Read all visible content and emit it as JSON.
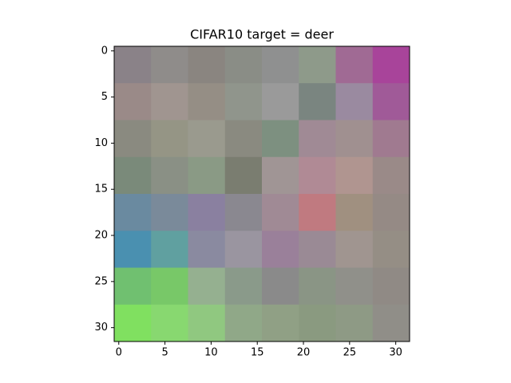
{
  "chart_data": {
    "type": "image",
    "title": "CIFAR10 target = deer",
    "xlim": [
      -0.5,
      31.5
    ],
    "ylim": [
      31.5,
      -0.5
    ],
    "xticks": [
      0,
      5,
      10,
      15,
      20,
      25,
      30
    ],
    "yticks": [
      0,
      5,
      10,
      15,
      20,
      25,
      30
    ],
    "pixels": [
      [
        "#8a8288",
        "#8f8c8a",
        "#8a8580",
        "#8a8d86",
        "#8f9090",
        "#8e9a8a",
        "#a06a94",
        "#a8449a"
      ],
      [
        "#9a8a88",
        "#a09590",
        "#958e85",
        "#90958c",
        "#9a9a9a",
        "#7a8580",
        "#9a8aa0",
        "#a05a98"
      ],
      [
        "#8a8a80",
        "#959585",
        "#9a9a8e",
        "#8a8a80",
        "#7d9080",
        "#a08a95",
        "#a09090",
        "#a07a90"
      ],
      [
        "#7a8a7a",
        "#8a9085",
        "#8a9a85",
        "#7a7d70",
        "#a09595",
        "#b08a95",
        "#b09590",
        "#9a8a88"
      ],
      [
        "#6a8aa0",
        "#7a8a9a",
        "#8a80a0",
        "#8a8890",
        "#a08a95",
        "#c07a80",
        "#a09080",
        "#958a85"
      ],
      [
        "#4a90b0",
        "#60a0a0",
        "#8a8aa0",
        "#9a95a0",
        "#9a809a",
        "#9a8a95",
        "#a09590",
        "#958e85"
      ],
      [
        "#70c070",
        "#78c868",
        "#95b090",
        "#8a9a8a",
        "#8a8a8a",
        "#8a9585",
        "#90908a",
        "#908a85"
      ],
      [
        "#80e060",
        "#88d870",
        "#90c880",
        "#90a888",
        "#90a085",
        "#8a9a80",
        "#8e9a85",
        "#908e88"
      ]
    ]
  }
}
